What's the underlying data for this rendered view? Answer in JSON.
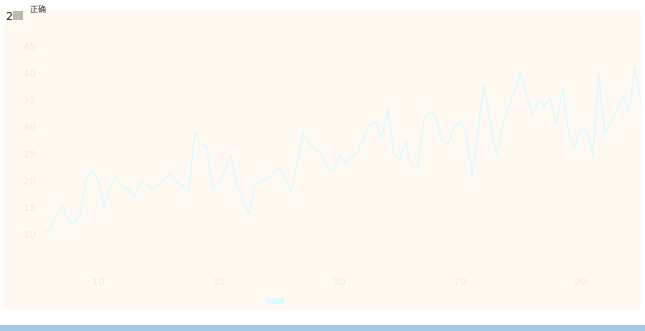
{
  "corner": {
    "number": "2",
    "caption": "正确"
  },
  "colors": {
    "plot_background": "#fff9f1",
    "series_line": "#dffaff",
    "bottom_bar": "#9ecbe8",
    "corner_icon": "#b9b9b9"
  },
  "chart_data": {
    "type": "line",
    "title": "",
    "xlabel": "",
    "ylabel": "",
    "grid": false,
    "legend_position": "bottom-center",
    "x": [
      1,
      2,
      3,
      4,
      5,
      6,
      7,
      8,
      9,
      10,
      11,
      12,
      13,
      14,
      15,
      16,
      17,
      18,
      19,
      20,
      21,
      22,
      23,
      24,
      25,
      26,
      27,
      28,
      29,
      30,
      31,
      32,
      33,
      34,
      35,
      36,
      37,
      38,
      39,
      40,
      41,
      42,
      43,
      44,
      45,
      46,
      47,
      48,
      49,
      50,
      51,
      52,
      53,
      54,
      55,
      56,
      57,
      58,
      59,
      60,
      61,
      62,
      63,
      64,
      65,
      66,
      67,
      68,
      69,
      70,
      71,
      72,
      73,
      74,
      75,
      76,
      77,
      78,
      79,
      80,
      81,
      82,
      83,
      84,
      85,
      86,
      87,
      88,
      89,
      90,
      91,
      92,
      93,
      94,
      95,
      96,
      97,
      98,
      99,
      100
    ],
    "ylim": [
      5,
      50
    ],
    "yticks": [
      10,
      15,
      20,
      25,
      30,
      35,
      40,
      45
    ],
    "series": [
      {
        "name": "",
        "values": [
          10.5,
          11.0,
          13.5,
          15.5,
          13.0,
          12.0,
          14.0,
          20.5,
          22.0,
          20.0,
          15.0,
          19.0,
          21.0,
          19.0,
          18.5,
          17.0,
          20.0,
          19.5,
          18.5,
          19.5,
          20.5,
          21.5,
          20.0,
          19.0,
          18.0,
          29.0,
          27.0,
          26.5,
          18.5,
          20.0,
          22.0,
          25.0,
          19.0,
          16.5,
          14.0,
          19.5,
          20.0,
          20.5,
          21.5,
          22.5,
          20.5,
          18.0,
          23.5,
          29.0,
          27.0,
          26.0,
          25.0,
          22.5,
          22.0,
          25.0,
          23.5,
          24.5,
          25.5,
          28.0,
          30.5,
          31.0,
          28.0,
          33.5,
          25.0,
          24.0,
          27.5,
          23.0,
          22.5,
          31.5,
          33.0,
          32.0,
          27.5,
          27.0,
          30.0,
          31.0,
          29.0,
          21.0,
          30.0,
          38.0,
          31.0,
          25.0,
          30.0,
          34.0,
          36.5,
          40.5,
          36.0,
          32.5,
          35.0,
          34.0,
          35.5,
          30.5,
          37.5,
          29.0,
          26.0,
          30.0,
          29.5,
          24.5,
          40.0,
          29.0,
          31.0,
          33.0,
          36.0,
          33.0,
          41.5,
          34.5
        ]
      }
    ]
  }
}
